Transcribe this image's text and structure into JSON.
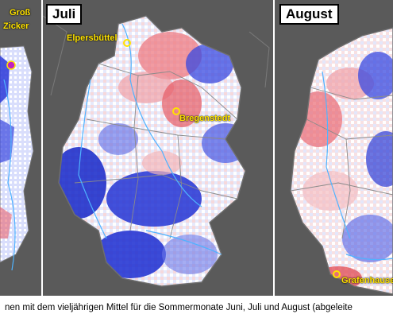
{
  "panels": {
    "juni": {
      "label": "",
      "place_lines": [
        "Groß",
        "Zicker"
      ]
    },
    "juli": {
      "label": "Juli",
      "places": [
        "Elpersbüttel",
        "Bregenstedt"
      ]
    },
    "august": {
      "label": "August",
      "places": [
        "Grafenhausen"
      ]
    }
  },
  "colors": {
    "background": "#5a5a5a",
    "warmer": "#e8404a",
    "colder": "#1a2fd0",
    "neutral": "#ffffff",
    "marker": "#ffe300",
    "rivers": "#4fb3ff",
    "borders": "#7a7a7a"
  },
  "caption": "nen mit dem vieljährigen Mittel für die Sommermonate Juni, Juli und August (abgeleite"
}
